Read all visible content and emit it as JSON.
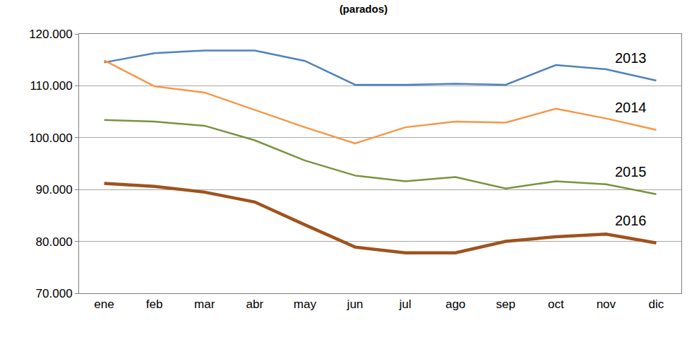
{
  "chart_data": {
    "type": "line",
    "title": "(parados)",
    "categories": [
      "ene",
      "feb",
      "mar",
      "abr",
      "may",
      "jun",
      "jul",
      "ago",
      "sep",
      "oct",
      "nov",
      "dic"
    ],
    "series": [
      {
        "name": "2013",
        "color": "#4f81bd",
        "values": [
          114500,
          116300,
          116800,
          116800,
          114800,
          110200,
          110200,
          110400,
          110200,
          114000,
          113200,
          111000
        ]
      },
      {
        "name": "2014",
        "color": "#f79646",
        "values": [
          114900,
          109900,
          108700,
          105300,
          102000,
          98900,
          102000,
          103100,
          102900,
          105600,
          103700,
          101500
        ]
      },
      {
        "name": "2015",
        "color": "#77933c",
        "values": [
          103400,
          103100,
          102300,
          99500,
          95600,
          92700,
          91600,
          92400,
          90200,
          91600,
          91000,
          89100
        ]
      },
      {
        "name": "2016",
        "color": "#a0521d",
        "values": [
          91200,
          90600,
          89500,
          87600,
          83200,
          78900,
          77800,
          77800,
          80000,
          80900,
          81400,
          79700
        ]
      }
    ],
    "ylim": [
      70000,
      120000
    ],
    "yticks": [
      {
        "value": 70000,
        "label": "70.000"
      },
      {
        "value": 80000,
        "label": "80.000"
      },
      {
        "value": 90000,
        "label": "90.000"
      },
      {
        "value": 100000,
        "label": "100.000"
      },
      {
        "value": 110000,
        "label": "110.000"
      },
      {
        "value": 120000,
        "label": "120.000"
      }
    ],
    "grid": true
  }
}
